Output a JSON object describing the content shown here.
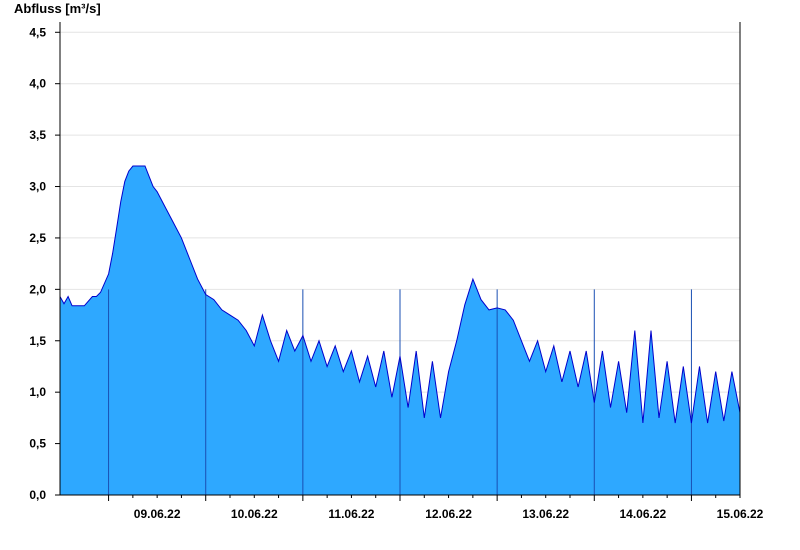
{
  "chart_data": {
    "type": "area",
    "title": "",
    "ylabel": "Abfluss [m³/s]",
    "xlabel": "",
    "ylim": [
      0,
      4.6
    ],
    "xlim": [
      "2022-06-08T12:00",
      "2022-06-15T12:00"
    ],
    "yticks": [
      "0,0",
      "0,5",
      "1,0",
      "1,5",
      "2,0",
      "2,5",
      "3,0",
      "3,5",
      "4,0",
      "4,5"
    ],
    "ytick_values": [
      0,
      0.5,
      1.0,
      1.5,
      2.0,
      2.5,
      3.0,
      3.5,
      4.0,
      4.5
    ],
    "xticks": [
      "09.06.22",
      "10.06.22",
      "11.06.22",
      "12.06.22",
      "13.06.22",
      "14.06.22",
      "15.06.22"
    ],
    "grid": true,
    "colors": {
      "fill": "#2ea8ff",
      "line": "#0000cc",
      "day_line": "#1a4fb3",
      "grid": "#e4e4e4"
    },
    "series": [
      {
        "x": [
          "2022-06-08T12:00",
          "2022-06-08T13:00",
          "2022-06-08T14:00",
          "2022-06-08T15:00",
          "2022-06-08T16:00",
          "2022-06-08T18:00",
          "2022-06-08T20:00",
          "2022-06-08T21:00",
          "2022-06-08T22:00",
          "2022-06-09T00:00",
          "2022-06-09T01:00",
          "2022-06-09T02:00",
          "2022-06-09T03:00",
          "2022-06-09T04:00",
          "2022-06-09T05:00",
          "2022-06-09T06:00",
          "2022-06-09T07:00",
          "2022-06-09T08:00",
          "2022-06-09T09:00",
          "2022-06-09T10:00",
          "2022-06-09T11:00",
          "2022-06-09T12:00",
          "2022-06-09T14:00",
          "2022-06-09T16:00",
          "2022-06-09T18:00",
          "2022-06-09T20:00",
          "2022-06-09T22:00",
          "2022-06-10T00:00",
          "2022-06-10T02:00",
          "2022-06-10T04:00",
          "2022-06-10T06:00",
          "2022-06-10T08:00",
          "2022-06-10T10:00",
          "2022-06-10T12:00",
          "2022-06-10T14:00",
          "2022-06-10T16:00",
          "2022-06-10T18:00",
          "2022-06-10T20:00",
          "2022-06-10T22:00",
          "2022-06-11T00:00",
          "2022-06-11T02:00",
          "2022-06-11T04:00",
          "2022-06-11T06:00",
          "2022-06-11T08:00",
          "2022-06-11T10:00",
          "2022-06-11T12:00",
          "2022-06-11T14:00",
          "2022-06-11T16:00",
          "2022-06-11T18:00",
          "2022-06-11T20:00",
          "2022-06-11T22:00",
          "2022-06-12T00:00",
          "2022-06-12T02:00",
          "2022-06-12T04:00",
          "2022-06-12T06:00",
          "2022-06-12T08:00",
          "2022-06-12T10:00",
          "2022-06-12T12:00",
          "2022-06-12T14:00",
          "2022-06-12T16:00",
          "2022-06-12T18:00",
          "2022-06-12T20:00",
          "2022-06-12T22:00",
          "2022-06-13T00:00",
          "2022-06-13T02:00",
          "2022-06-13T04:00",
          "2022-06-13T06:00",
          "2022-06-13T08:00",
          "2022-06-13T10:00",
          "2022-06-13T12:00",
          "2022-06-13T14:00",
          "2022-06-13T16:00",
          "2022-06-13T18:00",
          "2022-06-13T20:00",
          "2022-06-13T22:00",
          "2022-06-14T00:00",
          "2022-06-14T02:00",
          "2022-06-14T04:00",
          "2022-06-14T06:00",
          "2022-06-14T08:00",
          "2022-06-14T10:00",
          "2022-06-14T12:00",
          "2022-06-14T14:00",
          "2022-06-14T16:00",
          "2022-06-14T18:00",
          "2022-06-14T20:00",
          "2022-06-14T22:00",
          "2022-06-15T00:00",
          "2022-06-15T02:00",
          "2022-06-15T04:00",
          "2022-06-15T06:00",
          "2022-06-15T08:00",
          "2022-06-15T10:00",
          "2022-06-15T12:00"
        ],
        "values": [
          1.93,
          1.86,
          1.93,
          1.84,
          1.84,
          1.84,
          1.93,
          1.93,
          1.97,
          2.15,
          2.35,
          2.6,
          2.85,
          3.05,
          3.15,
          3.2,
          3.2,
          3.2,
          3.2,
          3.1,
          3.0,
          2.95,
          2.8,
          2.65,
          2.5,
          2.3,
          2.1,
          1.95,
          1.9,
          1.8,
          1.75,
          1.7,
          1.6,
          1.45,
          1.75,
          1.5,
          1.3,
          1.6,
          1.4,
          1.55,
          1.3,
          1.5,
          1.25,
          1.45,
          1.2,
          1.4,
          1.1,
          1.35,
          1.05,
          1.4,
          0.95,
          1.35,
          0.85,
          1.4,
          0.75,
          1.3,
          0.75,
          1.2,
          1.5,
          1.85,
          2.1,
          1.9,
          1.8,
          1.82,
          1.8,
          1.7,
          1.5,
          1.3,
          1.5,
          1.2,
          1.45,
          1.1,
          1.4,
          1.05,
          1.4,
          0.9,
          1.4,
          0.85,
          1.3,
          0.8,
          1.6,
          0.7,
          1.6,
          0.75,
          1.3,
          0.7,
          1.25,
          0.7,
          1.25,
          0.7,
          1.2,
          0.72,
          1.2,
          0.8
        ]
      }
    ]
  }
}
